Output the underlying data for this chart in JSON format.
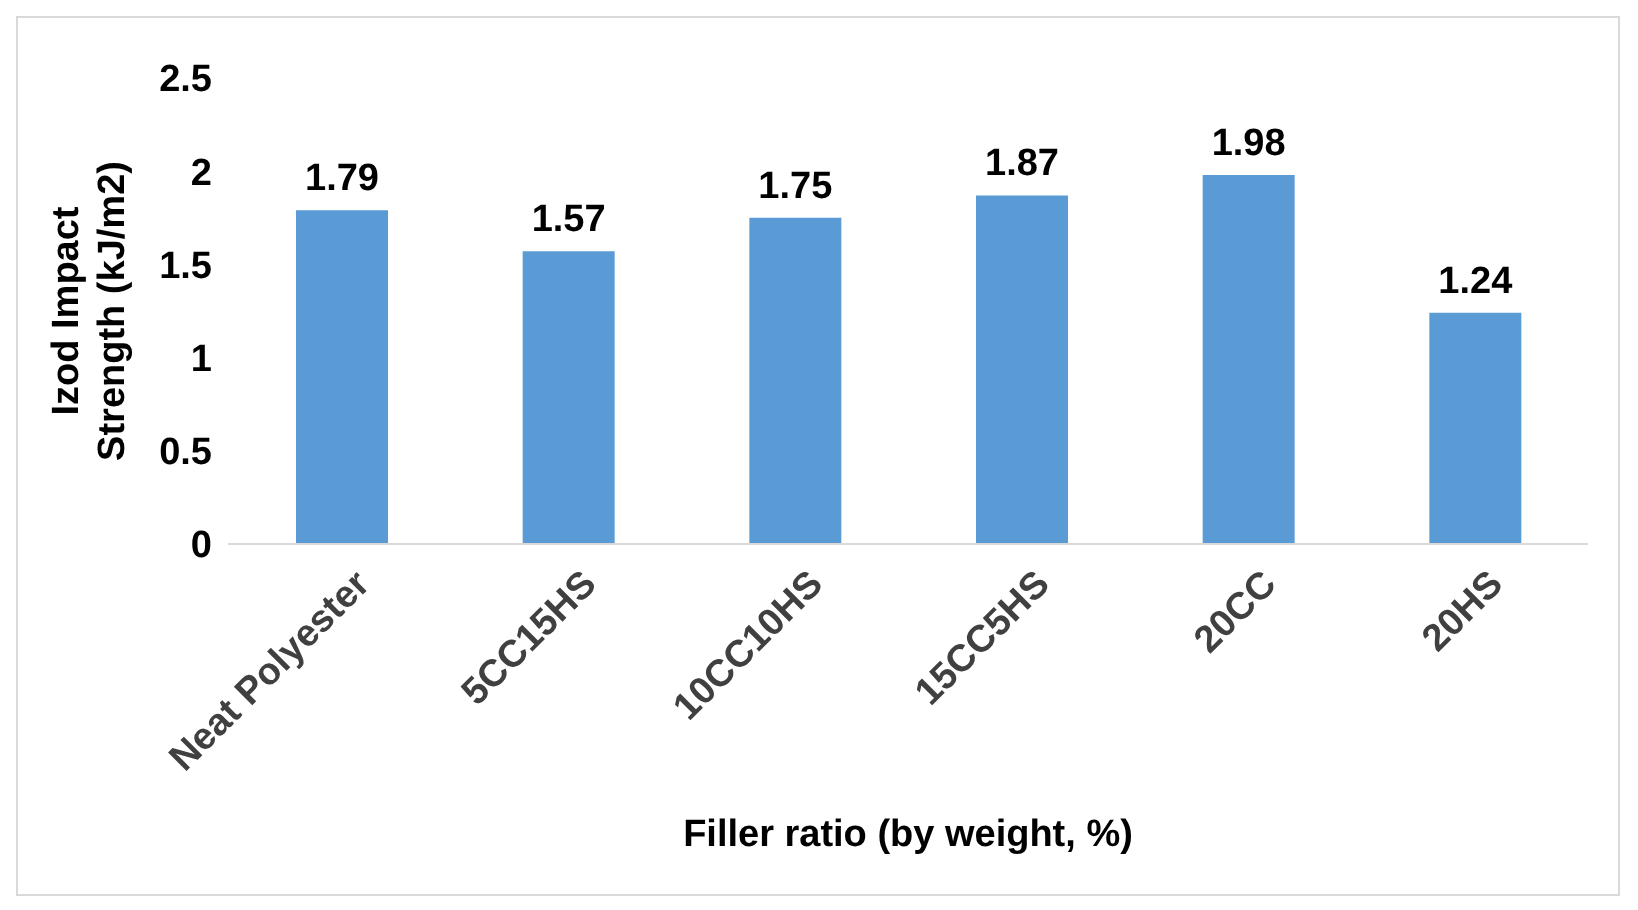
{
  "chart_data": {
    "type": "bar",
    "xlabel": "Filler ratio (by weight, %)",
    "ylabel": "Izod Impact Strength (kJ/m2)",
    "categories": [
      "Neat Polyester",
      "5CC15HS",
      "10CC10HS",
      "15CC5HS",
      "20CC",
      "20HS"
    ],
    "values": [
      1.79,
      1.57,
      1.75,
      1.87,
      1.98,
      1.24
    ],
    "color": "#5b9bd5",
    "ylim": [
      0,
      2.5
    ],
    "yticks": [
      0,
      0.5,
      1,
      1.5,
      2,
      2.5
    ],
    "grid": false,
    "legend": false,
    "data_labels": true
  }
}
